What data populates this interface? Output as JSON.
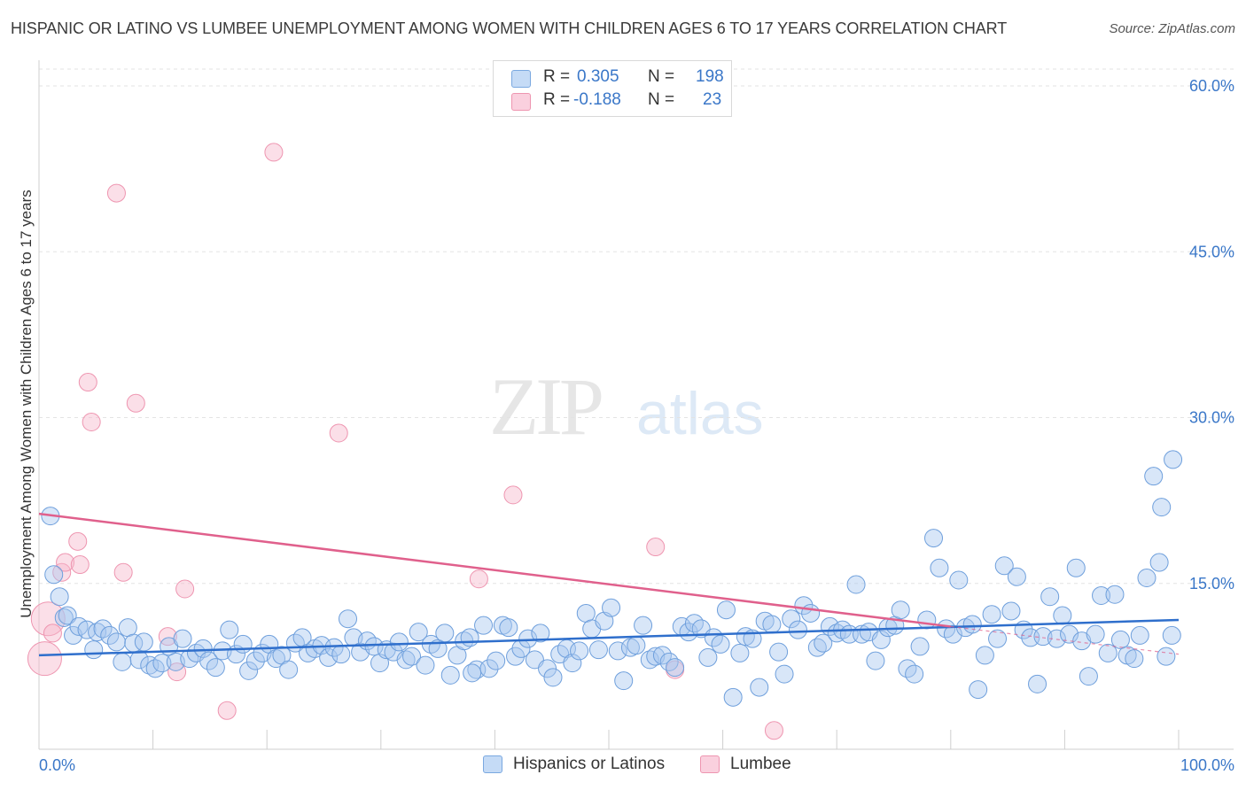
{
  "title": "HISPANIC OR LATINO VS LUMBEE UNEMPLOYMENT AMONG WOMEN WITH CHILDREN AGES 6 TO 17 YEARS CORRELATION CHART",
  "source": "Source: ZipAtlas.com",
  "watermark": {
    "zip": "ZIP",
    "atlas": "atlas"
  },
  "stats_legend": {
    "rows": [
      {
        "r_label": "R =",
        "r_value": "0.305",
        "n_label": "N =",
        "n_value": "198",
        "color": "#a9c8f0"
      },
      {
        "r_label": "R =",
        "r_value": "-0.188",
        "n_label": "N =",
        "n_value": "23",
        "color": "#f6b8cb"
      }
    ]
  },
  "bottom_legend": [
    {
      "label": "Hispanics or Latinos",
      "color": "#a9c8f0"
    },
    {
      "label": "Lumbee",
      "color": "#f6b8cb"
    }
  ],
  "chart_data": {
    "type": "scatter",
    "title": "HISPANIC OR LATINO VS LUMBEE UNEMPLOYMENT AMONG WOMEN WITH CHILDREN AGES 6 TO 17 YEARS CORRELATION CHART",
    "xlabel": "",
    "ylabel": "Unemployment Among Women with Children Ages 6 to 17 years",
    "xlim": [
      0,
      100
    ],
    "ylim": [
      0,
      60
    ],
    "x_tick_labels": [
      "0.0%",
      "100.0%"
    ],
    "y_ticks": [
      15,
      30,
      45,
      60
    ],
    "y_tick_labels": [
      "15.0%",
      "30.0%",
      "45.0%",
      "60.0%"
    ],
    "grid": true,
    "legend_position": "top-center",
    "series": [
      {
        "name": "Hispanics or Latinos",
        "color": "#a9c8f0",
        "edge_color": "#7aa8e0",
        "trend": {
          "x": [
            0,
            100
          ],
          "y": [
            8.5,
            11.7
          ],
          "color": "#2f6fcc"
        },
        "points": [
          [
            1,
            21.1
          ],
          [
            1.3,
            15.8
          ],
          [
            1.8,
            13.8
          ],
          [
            2.2,
            11.9
          ],
          [
            2.5,
            12.1
          ],
          [
            3,
            10.3
          ],
          [
            3.5,
            11.1
          ],
          [
            4.2,
            10.8
          ],
          [
            4.8,
            9.0
          ],
          [
            5.1,
            10.6
          ],
          [
            5.6,
            10.9
          ],
          [
            6.2,
            10.3
          ],
          [
            6.8,
            9.7
          ],
          [
            7.3,
            7.9
          ],
          [
            7.8,
            11.0
          ],
          [
            8.3,
            9.6
          ],
          [
            8.8,
            8.1
          ],
          [
            9.2,
            9.7
          ],
          [
            9.7,
            7.6
          ],
          [
            10.2,
            7.3
          ],
          [
            10.8,
            7.8
          ],
          [
            11.4,
            9.3
          ],
          [
            12,
            7.9
          ],
          [
            12.6,
            10.0
          ],
          [
            13.2,
            8.2
          ],
          [
            13.8,
            8.7
          ],
          [
            14.4,
            9.1
          ],
          [
            14.9,
            8.0
          ],
          [
            15.5,
            7.4
          ],
          [
            16.1,
            8.9
          ],
          [
            16.7,
            10.8
          ],
          [
            17.3,
            8.6
          ],
          [
            17.9,
            9.5
          ],
          [
            18.4,
            7.1
          ],
          [
            19.0,
            8.0
          ],
          [
            19.6,
            8.7
          ],
          [
            20.2,
            9.5
          ],
          [
            20.8,
            8.2
          ],
          [
            21.3,
            8.5
          ],
          [
            21.9,
            7.2
          ],
          [
            22.5,
            9.6
          ],
          [
            23.1,
            10.1
          ],
          [
            23.6,
            8.7
          ],
          [
            24.2,
            9.1
          ],
          [
            24.8,
            9.4
          ],
          [
            25.4,
            8.3
          ],
          [
            25.9,
            9.2
          ],
          [
            26.5,
            8.6
          ],
          [
            27.1,
            11.8
          ],
          [
            27.6,
            10.1
          ],
          [
            28.2,
            8.8
          ],
          [
            28.8,
            9.8
          ],
          [
            29.4,
            9.3
          ],
          [
            29.9,
            7.8
          ],
          [
            30.5,
            9.0
          ],
          [
            31.1,
            8.8
          ],
          [
            31.6,
            9.7
          ],
          [
            32.2,
            8.1
          ],
          [
            32.7,
            8.4
          ],
          [
            33.3,
            10.6
          ],
          [
            33.9,
            7.6
          ],
          [
            34.4,
            9.5
          ],
          [
            35.0,
            9.1
          ],
          [
            35.6,
            10.5
          ],
          [
            36.1,
            6.7
          ],
          [
            36.7,
            8.5
          ],
          [
            37.3,
            9.8
          ],
          [
            37.8,
            10.1
          ],
          [
            38.4,
            7.2
          ],
          [
            39.0,
            11.2
          ],
          [
            39.5,
            7.3
          ],
          [
            40.1,
            8.0
          ],
          [
            40.7,
            11.2
          ],
          [
            41.2,
            11.0
          ],
          [
            41.8,
            8.4
          ],
          [
            42.3,
            9.1
          ],
          [
            42.9,
            10.0
          ],
          [
            43.5,
            8.1
          ],
          [
            44.0,
            10.5
          ],
          [
            44.6,
            7.3
          ],
          [
            45.1,
            6.5
          ],
          [
            45.7,
            8.6
          ],
          [
            46.3,
            9.1
          ],
          [
            46.8,
            7.8
          ],
          [
            47.4,
            8.9
          ],
          [
            48.0,
            12.3
          ],
          [
            48.5,
            10.9
          ],
          [
            49.1,
            9.0
          ],
          [
            49.6,
            11.6
          ],
          [
            50.2,
            12.8
          ],
          [
            50.8,
            8.9
          ],
          [
            51.3,
            6.2
          ],
          [
            51.9,
            9.2
          ],
          [
            52.4,
            9.4
          ],
          [
            53.0,
            11.2
          ],
          [
            53.6,
            8.1
          ],
          [
            54.1,
            8.4
          ],
          [
            54.7,
            8.5
          ],
          [
            55.3,
            7.9
          ],
          [
            55.8,
            7.4
          ],
          [
            56.4,
            11.1
          ],
          [
            57.0,
            10.6
          ],
          [
            57.5,
            11.4
          ],
          [
            58.1,
            10.9
          ],
          [
            58.7,
            8.3
          ],
          [
            59.2,
            10.1
          ],
          [
            59.8,
            9.5
          ],
          [
            60.3,
            12.6
          ],
          [
            60.9,
            4.7
          ],
          [
            61.5,
            8.7
          ],
          [
            62.0,
            10.2
          ],
          [
            62.6,
            10.0
          ],
          [
            63.2,
            5.6
          ],
          [
            63.7,
            11.6
          ],
          [
            64.3,
            11.3
          ],
          [
            64.9,
            8.8
          ],
          [
            65.4,
            6.8
          ],
          [
            66.0,
            11.8
          ],
          [
            66.6,
            10.8
          ],
          [
            67.1,
            13.0
          ],
          [
            67.7,
            12.3
          ],
          [
            68.3,
            9.2
          ],
          [
            68.8,
            9.6
          ],
          [
            69.4,
            11.1
          ],
          [
            70.0,
            10.5
          ],
          [
            70.5,
            10.8
          ],
          [
            71.1,
            10.4
          ],
          [
            71.7,
            14.9
          ],
          [
            72.2,
            10.4
          ],
          [
            72.8,
            10.6
          ],
          [
            73.4,
            8.0
          ],
          [
            73.9,
            9.9
          ],
          [
            74.5,
            11.0
          ],
          [
            75.1,
            11.2
          ],
          [
            75.6,
            12.6
          ],
          [
            76.2,
            7.3
          ],
          [
            76.8,
            6.8
          ],
          [
            77.3,
            9.3
          ],
          [
            77.9,
            11.7
          ],
          [
            78.5,
            19.1
          ],
          [
            79.0,
            16.4
          ],
          [
            79.6,
            10.9
          ],
          [
            80.2,
            10.4
          ],
          [
            80.7,
            15.3
          ],
          [
            81.3,
            11.0
          ],
          [
            81.9,
            11.3
          ],
          [
            82.4,
            5.4
          ],
          [
            83.0,
            8.5
          ],
          [
            83.6,
            12.2
          ],
          [
            84.1,
            10.0
          ],
          [
            84.7,
            16.6
          ],
          [
            85.3,
            12.5
          ],
          [
            85.8,
            15.6
          ],
          [
            86.4,
            10.8
          ],
          [
            87.0,
            10.1
          ],
          [
            87.6,
            5.9
          ],
          [
            88.1,
            10.2
          ],
          [
            88.7,
            13.8
          ],
          [
            89.3,
            10.0
          ],
          [
            89.8,
            12.1
          ],
          [
            90.4,
            10.4
          ],
          [
            91.0,
            16.4
          ],
          [
            91.5,
            9.8
          ],
          [
            92.1,
            6.6
          ],
          [
            92.7,
            10.4
          ],
          [
            93.2,
            13.9
          ],
          [
            93.8,
            8.7
          ],
          [
            94.4,
            14.0
          ],
          [
            94.9,
            9.9
          ],
          [
            95.5,
            8.5
          ],
          [
            96.1,
            8.2
          ],
          [
            96.6,
            10.3
          ],
          [
            97.2,
            15.5
          ],
          [
            97.8,
            24.7
          ],
          [
            98.3,
            16.9
          ],
          [
            98.9,
            8.4
          ],
          [
            99.4,
            10.3
          ],
          [
            98.5,
            21.9
          ],
          [
            99.5,
            26.2
          ],
          [
            38.0,
            6.9
          ]
        ]
      },
      {
        "name": "Lumbee",
        "color": "#f6b8cb",
        "edge_color": "#ee95b0",
        "trend": {
          "x": [
            0,
            80
          ],
          "y": [
            21.3,
            11.1
          ],
          "dashed_to": [
            100,
            8.6
          ],
          "color": "#e0608c"
        },
        "points": [
          [
            0.5,
            8.2
          ],
          [
            0.8,
            11.8
          ],
          [
            1.2,
            10.5
          ],
          [
            2.0,
            16.0
          ],
          [
            2.3,
            16.9
          ],
          [
            3.4,
            18.8
          ],
          [
            3.6,
            16.7
          ],
          [
            4.3,
            33.2
          ],
          [
            4.6,
            29.6
          ],
          [
            6.8,
            50.3
          ],
          [
            7.4,
            16.0
          ],
          [
            8.5,
            31.3
          ],
          [
            11.3,
            10.2
          ],
          [
            12.1,
            7.0
          ],
          [
            12.8,
            14.5
          ],
          [
            16.5,
            3.5
          ],
          [
            20.6,
            54.0
          ],
          [
            26.3,
            28.6
          ],
          [
            38.6,
            15.4
          ],
          [
            41.6,
            23.0
          ],
          [
            54.1,
            18.3
          ],
          [
            55.8,
            7.2
          ],
          [
            64.5,
            1.7
          ]
        ]
      }
    ]
  }
}
